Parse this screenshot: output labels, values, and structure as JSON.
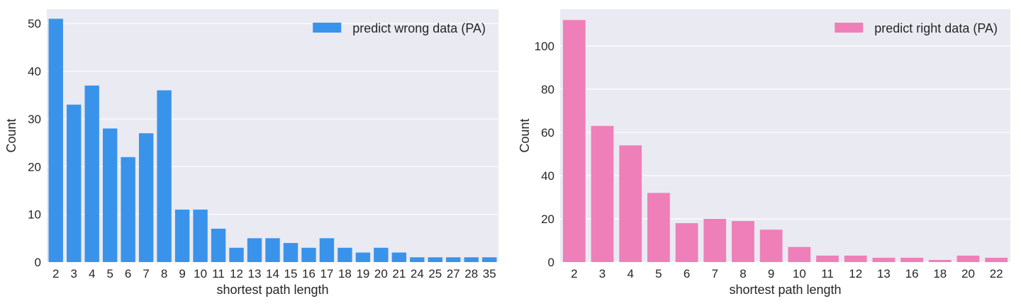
{
  "chart_data": [
    {
      "type": "bar",
      "xlabel": "shortest path length",
      "ylabel": "Count",
      "categories": [
        "2",
        "3",
        "4",
        "5",
        "6",
        "7",
        "8",
        "9",
        "10",
        "11",
        "12",
        "13",
        "14",
        "15",
        "16",
        "17",
        "18",
        "19",
        "20",
        "21",
        "24",
        "25",
        "27",
        "28",
        "35"
      ],
      "series": [
        {
          "name": "predict wrong data (PA)",
          "color": "#3a93ea",
          "values": [
            51,
            33,
            37,
            28,
            22,
            27,
            36,
            11,
            11,
            7,
            3,
            5,
            5,
            4,
            3,
            5,
            3,
            2,
            3,
            2,
            1,
            1,
            1,
            1,
            1
          ]
        }
      ],
      "ylim": [
        0,
        53
      ],
      "yticks": [
        0,
        10,
        20,
        30,
        40,
        50
      ],
      "grid": true,
      "legend": "top-right"
    },
    {
      "type": "bar",
      "xlabel": "shortest path length",
      "ylabel": "Count",
      "categories": [
        "2",
        "3",
        "4",
        "5",
        "6",
        "7",
        "8",
        "9",
        "10",
        "11",
        "12",
        "13",
        "16",
        "18",
        "20",
        "22"
      ],
      "series": [
        {
          "name": "predict right data (PA)",
          "color": "#ef7fb8",
          "values": [
            112,
            63,
            54,
            32,
            18,
            20,
            19,
            15,
            7,
            3,
            3,
            2,
            2,
            1,
            3,
            2
          ]
        }
      ],
      "ylim": [
        0,
        117
      ],
      "yticks": [
        0,
        20,
        40,
        60,
        80,
        100
      ],
      "grid": true,
      "legend": "top-right"
    }
  ],
  "style": {
    "plot_background": "#eaeaf2",
    "grid_color": "#ffffff"
  }
}
